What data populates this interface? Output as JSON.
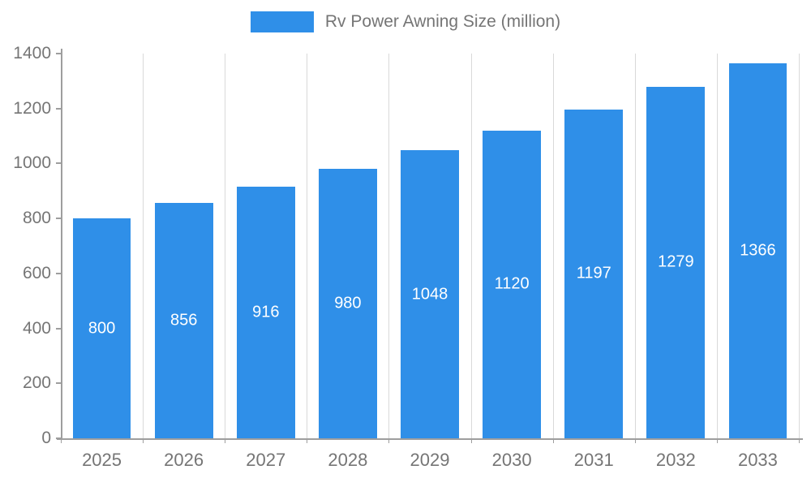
{
  "chart_data": {
    "type": "bar",
    "title": "Rv Power Awning Size (million)",
    "legend_label": "Rv Power Awning Size (million)",
    "legend_position": "top",
    "categories": [
      "2025",
      "2026",
      "2027",
      "2028",
      "2029",
      "2030",
      "2031",
      "2032",
      "2033"
    ],
    "values": [
      800,
      856,
      916,
      980,
      1048,
      1120,
      1197,
      1279,
      1366
    ],
    "xlabel": "",
    "ylabel": "",
    "ylim": [
      0,
      1400
    ],
    "ytick_step": 200,
    "ytick_labels": [
      "0",
      "200",
      "400",
      "600",
      "800",
      "1000",
      "1200",
      "1400"
    ],
    "grid": "vertical",
    "colors": {
      "bar": "#2F8FE8",
      "bar_value_label": "#ffffff",
      "axis": "#9e9e9e",
      "grid": "#d9d9d9",
      "tick_text": "#757575"
    }
  }
}
